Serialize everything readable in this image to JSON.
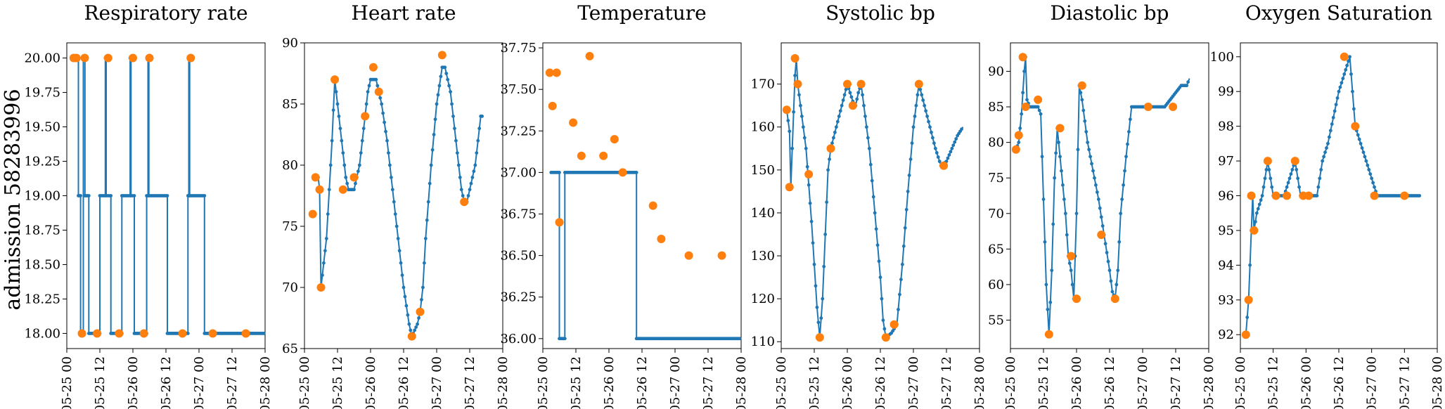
{
  "figure": {
    "row_label": "admission 58283996",
    "line_color": "#1f77b4",
    "marker_color": "#ff7f0e"
  },
  "chart_data": [
    {
      "type": "line",
      "title": "Respiratory rate",
      "x_unit": "hours since 05-25 00",
      "x_ticks": [
        "05-25 00",
        "05-25 12",
        "05-26 00",
        "05-26 12",
        "05-27 00",
        "05-27 12",
        "05-28 00"
      ],
      "xlim": [
        0,
        72
      ],
      "ylim": [
        17.89,
        20.11
      ],
      "y_ticks": [
        "18.00",
        "18.25",
        "18.50",
        "18.75",
        "19.00",
        "19.25",
        "19.50",
        "19.75",
        "20.00"
      ],
      "y_tick_values": [
        18.0,
        18.25,
        18.5,
        18.75,
        19.0,
        19.25,
        19.5,
        19.75,
        20.0
      ],
      "series_line": [
        [
          3,
          20
        ],
        [
          4.2,
          20
        ],
        [
          4.2,
          19
        ],
        [
          5,
          19
        ],
        [
          5,
          18
        ],
        [
          6,
          18
        ],
        [
          6,
          20
        ],
        [
          6.6,
          20
        ],
        [
          6.6,
          19
        ],
        [
          8,
          19
        ],
        [
          8,
          18
        ],
        [
          12,
          18
        ],
        [
          12,
          19
        ],
        [
          14,
          19
        ],
        [
          14,
          20
        ],
        [
          14.3,
          20
        ],
        [
          14.3,
          19
        ],
        [
          16,
          19
        ],
        [
          16,
          18
        ],
        [
          20,
          18
        ],
        [
          20,
          19
        ],
        [
          23,
          19
        ],
        [
          23,
          20
        ],
        [
          23.3,
          20
        ],
        [
          23.3,
          19
        ],
        [
          24.5,
          19
        ],
        [
          24.5,
          18
        ],
        [
          29,
          18
        ],
        [
          29,
          19
        ],
        [
          29.5,
          19
        ],
        [
          29.5,
          20
        ],
        [
          29.8,
          20
        ],
        [
          29.8,
          19
        ],
        [
          36.5,
          19
        ],
        [
          36.5,
          18
        ],
        [
          44,
          18
        ],
        [
          44,
          19
        ],
        [
          44.3,
          19
        ],
        [
          44.3,
          20
        ],
        [
          44.6,
          20
        ],
        [
          44.6,
          19
        ],
        [
          50,
          19
        ],
        [
          50,
          18
        ],
        [
          72,
          18
        ]
      ],
      "series_markers": [
        [
          2.5,
          20
        ],
        [
          3.5,
          20
        ],
        [
          5.5,
          18
        ],
        [
          6.5,
          20
        ],
        [
          11,
          18
        ],
        [
          15,
          20
        ],
        [
          19,
          18
        ],
        [
          24,
          20
        ],
        [
          28,
          18
        ],
        [
          30,
          20
        ],
        [
          42,
          18
        ],
        [
          45,
          20
        ],
        [
          53,
          18
        ],
        [
          65,
          18
        ]
      ]
    },
    {
      "type": "line",
      "title": "Heart rate",
      "x_unit": "hours since 05-25 00",
      "x_ticks": [
        "05-25 00",
        "05-25 12",
        "05-26 00",
        "05-26 12",
        "05-27 00",
        "05-27 12",
        "05-28 00"
      ],
      "xlim": [
        0,
        72
      ],
      "ylim": [
        65.0,
        90.0
      ],
      "y_ticks": [
        "65",
        "70",
        "75",
        "80",
        "85",
        "90"
      ],
      "y_tick_values": [
        65,
        70,
        75,
        80,
        85,
        90
      ],
      "series_line": [
        [
          4,
          79
        ],
        [
          5,
          79
        ],
        [
          5.5,
          78
        ],
        [
          6,
          70
        ],
        [
          7,
          72
        ],
        [
          8,
          74
        ],
        [
          9,
          78
        ],
        [
          10,
          82
        ],
        [
          11,
          87
        ],
        [
          12,
          85
        ],
        [
          13,
          83
        ],
        [
          14,
          81
        ],
        [
          15,
          79
        ],
        [
          16,
          78
        ],
        [
          18,
          78
        ],
        [
          19,
          79
        ],
        [
          20,
          80
        ],
        [
          21,
          82
        ],
        [
          22,
          84
        ],
        [
          23,
          86
        ],
        [
          24,
          87
        ],
        [
          26,
          87
        ],
        [
          27,
          86
        ],
        [
          28,
          85
        ],
        [
          30,
          82
        ],
        [
          32,
          78
        ],
        [
          34,
          74
        ],
        [
          36,
          70
        ],
        [
          38,
          67
        ],
        [
          39,
          66
        ],
        [
          41,
          67
        ],
        [
          42,
          68
        ],
        [
          43,
          70
        ],
        [
          44,
          74
        ],
        [
          46,
          80
        ],
        [
          48,
          85
        ],
        [
          50,
          88
        ],
        [
          51,
          88
        ],
        [
          52,
          87
        ],
        [
          53,
          86
        ],
        [
          54,
          84
        ],
        [
          56,
          80
        ],
        [
          57,
          78
        ],
        [
          58,
          77
        ],
        [
          59,
          77
        ],
        [
          60,
          78
        ],
        [
          62,
          80
        ],
        [
          63,
          82
        ],
        [
          64,
          84
        ],
        [
          65,
          84
        ]
      ],
      "series_markers": [
        [
          3,
          76
        ],
        [
          4,
          79
        ],
        [
          5.5,
          78
        ],
        [
          6,
          70
        ],
        [
          11,
          87
        ],
        [
          14,
          78
        ],
        [
          18,
          79
        ],
        [
          22,
          84
        ],
        [
          25,
          88
        ],
        [
          27,
          86
        ],
        [
          39,
          66
        ],
        [
          42,
          68
        ],
        [
          50,
          89
        ],
        [
          58,
          77
        ]
      ]
    },
    {
      "type": "line",
      "title": "Temperature",
      "x_unit": "hours since 05-25 00",
      "x_ticks": [
        "05-25 00",
        "05-25 12",
        "05-26 00",
        "05-26 12",
        "05-27 00",
        "05-27 12",
        "05-28 00"
      ],
      "xlim": [
        0,
        72
      ],
      "ylim": [
        35.94,
        37.78
      ],
      "y_ticks": [
        "36.00",
        "36.25",
        "36.50",
        "36.75",
        "37.00",
        "37.25",
        "37.50",
        "37.75"
      ],
      "y_tick_values": [
        36.0,
        36.25,
        36.5,
        36.75,
        37.0,
        37.25,
        37.5,
        37.75
      ],
      "series_line": [
        [
          3,
          37
        ],
        [
          6,
          37
        ],
        [
          6,
          36
        ],
        [
          8,
          36
        ],
        [
          8,
          37
        ],
        [
          34,
          37
        ],
        [
          34,
          36
        ],
        [
          72,
          36
        ]
      ],
      "series_markers": [
        [
          2.5,
          37.6
        ],
        [
          3.5,
          37.4
        ],
        [
          5,
          37.6
        ],
        [
          6,
          36.7
        ],
        [
          11,
          37.3
        ],
        [
          14,
          37.1
        ],
        [
          17,
          37.7
        ],
        [
          22,
          37.1
        ],
        [
          26,
          37.2
        ],
        [
          29,
          37.0
        ],
        [
          40,
          36.8
        ],
        [
          43,
          36.6
        ],
        [
          53,
          36.5
        ],
        [
          65,
          36.5
        ]
      ]
    },
    {
      "type": "line",
      "title": "Systolic bp",
      "x_unit": "hours since 05-25 00",
      "x_ticks": [
        "05-25 00",
        "05-25 12",
        "05-26 00",
        "05-26 12",
        "05-27 00",
        "05-27 12",
        "05-28 00"
      ],
      "xlim": [
        0,
        72
      ],
      "ylim": [
        108.4,
        179.6
      ],
      "y_ticks": [
        "110",
        "120",
        "130",
        "140",
        "150",
        "160",
        "170"
      ],
      "y_tick_values": [
        110,
        120,
        130,
        140,
        150,
        160,
        170
      ],
      "series_line": [
        [
          2,
          164
        ],
        [
          3,
          159
        ],
        [
          3.5,
          146
        ],
        [
          4,
          155
        ],
        [
          5,
          172
        ],
        [
          5.5,
          176
        ],
        [
          6,
          170
        ],
        [
          7,
          165
        ],
        [
          9,
          155
        ],
        [
          11,
          138
        ],
        [
          13,
          118
        ],
        [
          14,
          111
        ],
        [
          15,
          120
        ],
        [
          16,
          135
        ],
        [
          17,
          150
        ],
        [
          18,
          155
        ],
        [
          20,
          160
        ],
        [
          22,
          165
        ],
        [
          24,
          170
        ],
        [
          26,
          166
        ],
        [
          27,
          165
        ],
        [
          28,
          168
        ],
        [
          29,
          170
        ],
        [
          30,
          165
        ],
        [
          32,
          155
        ],
        [
          34,
          140
        ],
        [
          36,
          125
        ],
        [
          37,
          115
        ],
        [
          38,
          111
        ],
        [
          40,
          112
        ],
        [
          41,
          113
        ],
        [
          42,
          114
        ],
        [
          44,
          128
        ],
        [
          46,
          145
        ],
        [
          48,
          160
        ],
        [
          50,
          170
        ],
        [
          52,
          165
        ],
        [
          54,
          160
        ],
        [
          56,
          155
        ],
        [
          58,
          151
        ],
        [
          60,
          152
        ],
        [
          62,
          155
        ],
        [
          64,
          158
        ],
        [
          66,
          160
        ]
      ],
      "series_markers": [
        [
          2,
          164
        ],
        [
          3,
          146
        ],
        [
          5,
          176
        ],
        [
          6,
          170
        ],
        [
          10,
          149
        ],
        [
          14,
          111
        ],
        [
          18,
          155
        ],
        [
          24,
          170
        ],
        [
          26,
          165
        ],
        [
          29,
          170
        ],
        [
          38,
          111
        ],
        [
          41,
          114
        ],
        [
          50,
          170
        ],
        [
          59,
          151
        ]
      ]
    },
    {
      "type": "line",
      "title": "Diastolic bp",
      "x_unit": "hours since 05-25 00",
      "x_ticks": [
        "05-25 00",
        "05-25 12",
        "05-26 00",
        "05-26 12",
        "05-27 00",
        "05-27 12",
        "05-28 00"
      ],
      "xlim": [
        0,
        72
      ],
      "ylim": [
        51.0,
        94.0
      ],
      "y_ticks": [
        "55",
        "60",
        "65",
        "70",
        "75",
        "80",
        "85",
        "90"
      ],
      "y_tick_values": [
        55,
        60,
        65,
        70,
        75,
        80,
        85,
        90
      ],
      "series_line": [
        [
          2,
          79
        ],
        [
          3,
          80
        ],
        [
          4,
          84
        ],
        [
          5,
          90
        ],
        [
          5.5,
          92
        ],
        [
          6,
          86
        ],
        [
          7,
          85
        ],
        [
          8,
          85
        ],
        [
          10,
          85
        ],
        [
          11,
          84
        ],
        [
          12,
          72
        ],
        [
          13,
          60
        ],
        [
          14,
          53
        ],
        [
          15,
          62
        ],
        [
          16,
          75
        ],
        [
          17,
          82
        ],
        [
          18,
          78
        ],
        [
          20,
          70
        ],
        [
          21,
          64
        ],
        [
          22,
          62
        ],
        [
          23,
          58
        ],
        [
          24,
          70
        ],
        [
          25,
          88
        ],
        [
          26,
          86
        ],
        [
          28,
          80
        ],
        [
          30,
          76
        ],
        [
          32,
          72
        ],
        [
          34,
          67
        ],
        [
          36,
          62
        ],
        [
          37,
          59
        ],
        [
          38,
          58
        ],
        [
          39,
          62
        ],
        [
          40,
          70
        ],
        [
          42,
          78
        ],
        [
          44,
          85
        ],
        [
          46,
          85
        ],
        [
          48,
          85
        ],
        [
          52,
          85
        ],
        [
          56,
          85
        ],
        [
          58,
          86
        ],
        [
          60,
          87
        ],
        [
          62,
          88
        ],
        [
          64,
          88
        ],
        [
          65,
          89
        ]
      ],
      "series_markers": [
        [
          2,
          79
        ],
        [
          3,
          81
        ],
        [
          4.5,
          92
        ],
        [
          5.5,
          85
        ],
        [
          10,
          86
        ],
        [
          14,
          53
        ],
        [
          18,
          82
        ],
        [
          22,
          64
        ],
        [
          24,
          58
        ],
        [
          26,
          88
        ],
        [
          33,
          67
        ],
        [
          38,
          58
        ],
        [
          50,
          85
        ],
        [
          59,
          85
        ]
      ]
    },
    {
      "type": "line",
      "title": "Oxygen Saturation",
      "x_unit": "hours since 05-25 00",
      "x_ticks": [
        "05-25 00",
        "05-25 12",
        "05-26 00",
        "05-26 12",
        "05-27 00",
        "05-27 12",
        "05-28 00"
      ],
      "xlim": [
        0,
        72
      ],
      "ylim": [
        91.6,
        100.4
      ],
      "y_ticks": [
        "92",
        "93",
        "94",
        "95",
        "96",
        "97",
        "98",
        "99",
        "100"
      ],
      "y_tick_values": [
        92,
        93,
        94,
        95,
        96,
        97,
        98,
        99,
        100
      ],
      "series_line": [
        [
          2,
          92
        ],
        [
          3,
          93
        ],
        [
          4,
          95
        ],
        [
          4.5,
          96
        ],
        [
          5,
          95
        ],
        [
          6,
          95.5
        ],
        [
          8,
          96
        ],
        [
          10,
          97
        ],
        [
          12,
          96
        ],
        [
          16,
          96
        ],
        [
          18,
          96.5
        ],
        [
          20,
          97
        ],
        [
          22,
          96
        ],
        [
          24,
          96
        ],
        [
          28,
          96
        ],
        [
          30,
          97
        ],
        [
          32,
          97.5
        ],
        [
          36,
          99
        ],
        [
          40,
          100
        ],
        [
          42,
          98
        ],
        [
          44,
          97.5
        ],
        [
          46,
          97
        ],
        [
          48,
          96.5
        ],
        [
          50,
          96
        ],
        [
          52,
          96
        ],
        [
          56,
          96
        ],
        [
          60,
          96
        ],
        [
          64,
          96
        ],
        [
          66,
          96
        ]
      ],
      "series_markers": [
        [
          2,
          92
        ],
        [
          3,
          93
        ],
        [
          4,
          96
        ],
        [
          5,
          95
        ],
        [
          10,
          97
        ],
        [
          13,
          96
        ],
        [
          17,
          96
        ],
        [
          20,
          97
        ],
        [
          23,
          96
        ],
        [
          25,
          96
        ],
        [
          38,
          100
        ],
        [
          42,
          98
        ],
        [
          49,
          96
        ],
        [
          60,
          96
        ]
      ]
    }
  ]
}
